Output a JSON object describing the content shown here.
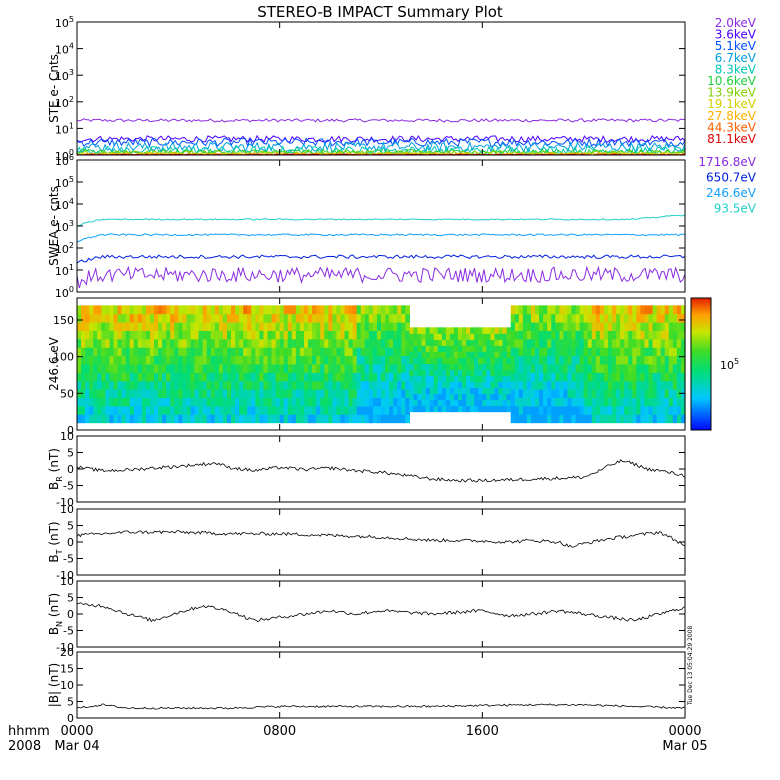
{
  "title": "STEREO-B IMPACT Summary Plot",
  "footer": {
    "left_top": "hhmm",
    "left_bottom": "2008",
    "x_ticks": [
      {
        "label": "0000",
        "sub": "Mar 04",
        "t": 0
      },
      {
        "label": "0800",
        "sub": "",
        "t": 8
      },
      {
        "label": "1600",
        "sub": "",
        "t": 16
      },
      {
        "label": "0000",
        "sub": "Mar 05",
        "t": 24
      }
    ],
    "timestamp": "Tue Dec 13 05:04:29 2008"
  },
  "colors": {
    "ste": [
      "#8a2be2",
      "#4b00ff",
      "#0050ff",
      "#00a0e0",
      "#00c8b4",
      "#20d040",
      "#80d000",
      "#d0d000",
      "#ffb000",
      "#ff6000",
      "#e00000"
    ],
    "swea": [
      "#8a2be2",
      "#0020e0",
      "#10a0ff",
      "#20d0c8"
    ]
  },
  "chart_data": [
    {
      "id": "ste",
      "type": "line",
      "ylabel": "STE e- Cnts",
      "yscale": "log",
      "ylim": [
        1,
        100000
      ],
      "y_ticks": [
        "10^0",
        "10^1",
        "10^2",
        "10^3",
        "10^4",
        "10^5"
      ],
      "x_range_hours": [
        0,
        24
      ],
      "series": [
        {
          "name": "2.0keV",
          "level": 20,
          "noise": 0.06
        },
        {
          "name": "3.6keV",
          "level": 4,
          "noise": 0.12
        },
        {
          "name": "5.1keV",
          "level": 3,
          "noise": 0.15
        },
        {
          "name": "6.7keV",
          "level": 2,
          "noise": 0.18
        },
        {
          "name": "8.3keV",
          "level": 1.5,
          "noise": 0.15
        },
        {
          "name": "10.6keV",
          "level": 1.3,
          "noise": 0.1
        },
        {
          "name": "13.9keV",
          "level": 1.2,
          "noise": 0.08
        },
        {
          "name": "19.1keV",
          "level": 1.1,
          "noise": 0.06
        },
        {
          "name": "27.8keV",
          "level": 1.05,
          "noise": 0.04
        },
        {
          "name": "44.3keV",
          "level": 1.03,
          "noise": 0.03
        },
        {
          "name": "81.1keV",
          "level": 1.02,
          "noise": 0.02
        }
      ]
    },
    {
      "id": "swea",
      "type": "line",
      "ylabel": "SWEA e- cnts",
      "yscale": "log",
      "ylim": [
        1,
        1000000
      ],
      "y_ticks": [
        "10^0",
        "10^1",
        "10^2",
        "10^3",
        "10^4",
        "10^5",
        "10^6"
      ],
      "x_range_hours": [
        0,
        24
      ],
      "series": [
        {
          "name": "1716.8eV",
          "level": 6,
          "noise": 0.35
        },
        {
          "name": "650.7eV",
          "level": 40,
          "noise": 0.08
        },
        {
          "name": "246.6eV",
          "level": 400,
          "noise": 0.04
        },
        {
          "name": "93.5eV",
          "level": 2000,
          "noise": 0.03
        }
      ]
    },
    {
      "id": "pad",
      "type": "heatmap",
      "ylabel": "246.6 eV",
      "ylim": [
        0,
        180
      ],
      "y_ticks": [
        0,
        50,
        100,
        150
      ],
      "x_range_hours": [
        0,
        24
      ],
      "colorbar_label": "10^5"
    },
    {
      "id": "br",
      "type": "line",
      "ylabel": "B_R (nT)",
      "ylim": [
        -10,
        10
      ],
      "y_ticks": [
        -10,
        -5,
        0,
        5,
        10
      ],
      "x_range_hours": [
        0,
        24
      ],
      "points": [
        [
          0,
          0.5
        ],
        [
          1,
          -0.5
        ],
        [
          2,
          -0.3
        ],
        [
          3,
          0.3
        ],
        [
          4,
          0.8
        ],
        [
          5.5,
          1.8
        ],
        [
          6,
          0.5
        ],
        [
          7,
          -0.5
        ],
        [
          8,
          0.5
        ],
        [
          9,
          -0.2
        ],
        [
          10,
          0.3
        ],
        [
          11,
          -0.5
        ],
        [
          12,
          -1
        ],
        [
          13,
          -2
        ],
        [
          14,
          -3
        ],
        [
          15,
          -3.5
        ],
        [
          16,
          -3.5
        ],
        [
          17,
          -3.3
        ],
        [
          18,
          -3
        ],
        [
          19,
          -2.8
        ],
        [
          20,
          -2.5
        ],
        [
          20.5,
          -1
        ],
        [
          21,
          1
        ],
        [
          21.5,
          2.5
        ],
        [
          22,
          1.5
        ],
        [
          22.5,
          0
        ],
        [
          23,
          -0.5
        ],
        [
          24,
          -2
        ]
      ]
    },
    {
      "id": "bt",
      "type": "line",
      "ylabel": "B_T (nT)",
      "ylim": [
        -10,
        10
      ],
      "y_ticks": [
        -10,
        -5,
        0,
        5,
        10
      ],
      "x_range_hours": [
        0,
        24
      ],
      "points": [
        [
          0,
          2
        ],
        [
          2,
          3
        ],
        [
          4,
          3
        ],
        [
          6,
          2.5
        ],
        [
          8,
          2.5
        ],
        [
          10,
          2
        ],
        [
          12,
          1.5
        ],
        [
          13,
          1
        ],
        [
          14,
          0.5
        ],
        [
          15,
          0.5
        ],
        [
          16,
          0.3
        ],
        [
          17,
          0
        ],
        [
          18,
          0.5
        ],
        [
          19,
          0
        ],
        [
          19.5,
          -1.5
        ],
        [
          20,
          -0.5
        ],
        [
          21,
          1
        ],
        [
          22,
          2
        ],
        [
          23,
          3
        ],
        [
          23.5,
          1
        ],
        [
          24,
          -1
        ]
      ]
    },
    {
      "id": "bn",
      "type": "line",
      "ylabel": "B_N (nT)",
      "ylim": [
        -10,
        10
      ],
      "y_ticks": [
        -10,
        -5,
        0,
        5,
        10
      ],
      "x_range_hours": [
        0,
        24
      ],
      "points": [
        [
          0,
          3
        ],
        [
          1,
          2.5
        ],
        [
          2,
          0
        ],
        [
          3,
          -2
        ],
        [
          4,
          0.5
        ],
        [
          5,
          2.5
        ],
        [
          6,
          1
        ],
        [
          7,
          -2
        ],
        [
          8,
          -1
        ],
        [
          9,
          0
        ],
        [
          10,
          1
        ],
        [
          11,
          0
        ],
        [
          12,
          1
        ],
        [
          13,
          0.5
        ],
        [
          14,
          0
        ],
        [
          15,
          0.5
        ],
        [
          16,
          1
        ],
        [
          17,
          -0.5
        ],
        [
          18,
          0
        ],
        [
          19,
          1
        ],
        [
          20,
          0
        ],
        [
          21,
          -1
        ],
        [
          22,
          -2
        ],
        [
          23,
          0
        ],
        [
          24,
          2
        ]
      ]
    },
    {
      "id": "btot",
      "type": "line",
      "ylabel": "|B| (nT)",
      "ylim": [
        0,
        20
      ],
      "y_ticks": [
        0,
        5,
        10,
        15,
        20
      ],
      "x_range_hours": [
        0,
        24
      ],
      "points": [
        [
          0,
          3
        ],
        [
          1,
          4
        ],
        [
          2,
          3
        ],
        [
          4,
          3
        ],
        [
          6,
          3
        ],
        [
          8,
          3.5
        ],
        [
          10,
          3.5
        ],
        [
          12,
          3.5
        ],
        [
          14,
          3.5
        ],
        [
          16,
          3.8
        ],
        [
          18,
          4
        ],
        [
          20,
          4
        ],
        [
          22,
          3.5
        ],
        [
          24,
          3
        ]
      ]
    }
  ]
}
